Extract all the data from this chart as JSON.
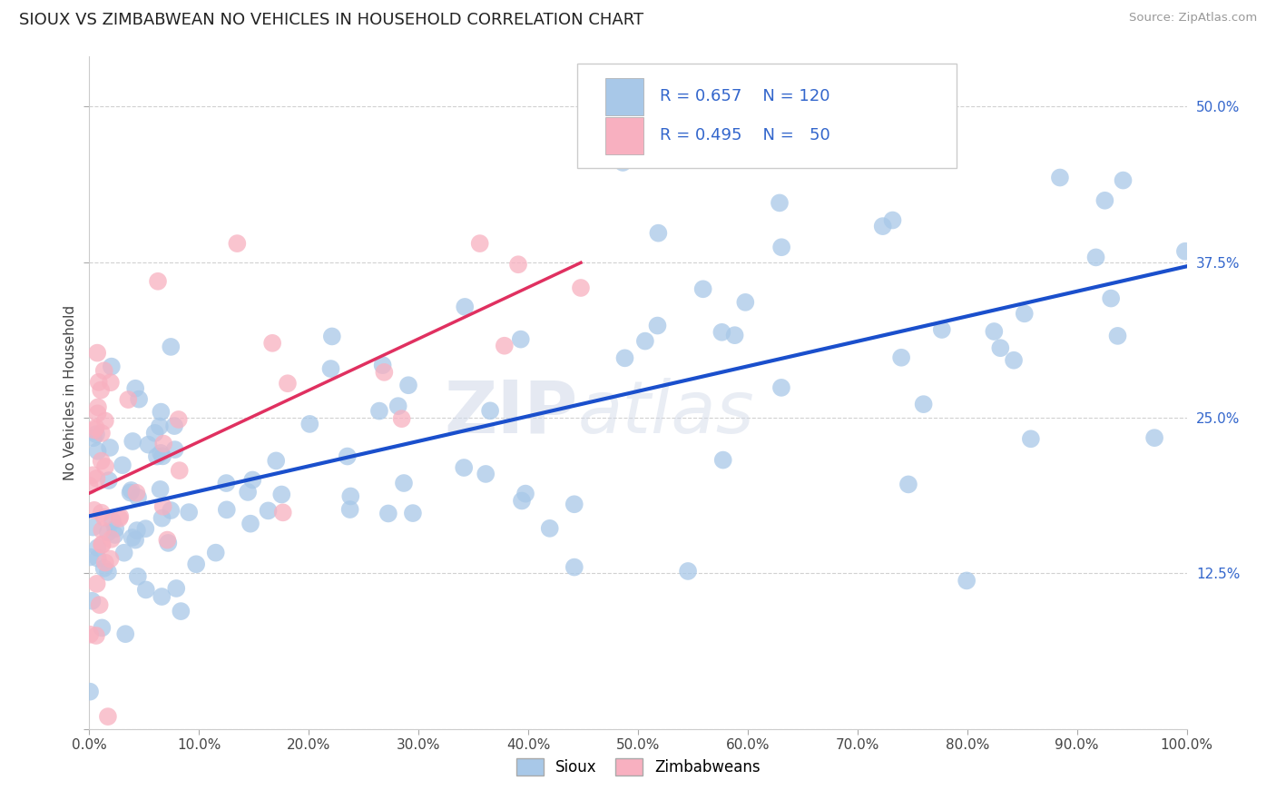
{
  "title": "SIOUX VS ZIMBABWEAN NO VEHICLES IN HOUSEHOLD CORRELATION CHART",
  "source_text": "Source: ZipAtlas.com",
  "ylabel": "No Vehicles in Household",
  "sioux_color": "#a8c8e8",
  "zimbabwe_color": "#f8b0c0",
  "sioux_line_color": "#1a4fcc",
  "zimbabwe_line_color": "#e03060",
  "sioux_r": 0.657,
  "sioux_n": 120,
  "zimbabwe_r": 0.495,
  "zimbabwe_n": 50,
  "x_min": 0.0,
  "x_max": 1.0,
  "y_min": 0.0,
  "y_max": 0.54,
  "yticks": [
    0.0,
    0.125,
    0.25,
    0.375,
    0.5
  ],
  "ytick_labels": [
    "",
    "12.5%",
    "25.0%",
    "37.5%",
    "50.0%"
  ],
  "background_color": "#ffffff",
  "grid_color": "#cccccc",
  "watermark_zip": "ZIP",
  "watermark_atlas": "atlas",
  "legend_sioux_label": "Sioux",
  "legend_zim_label": "Zimbabweans"
}
